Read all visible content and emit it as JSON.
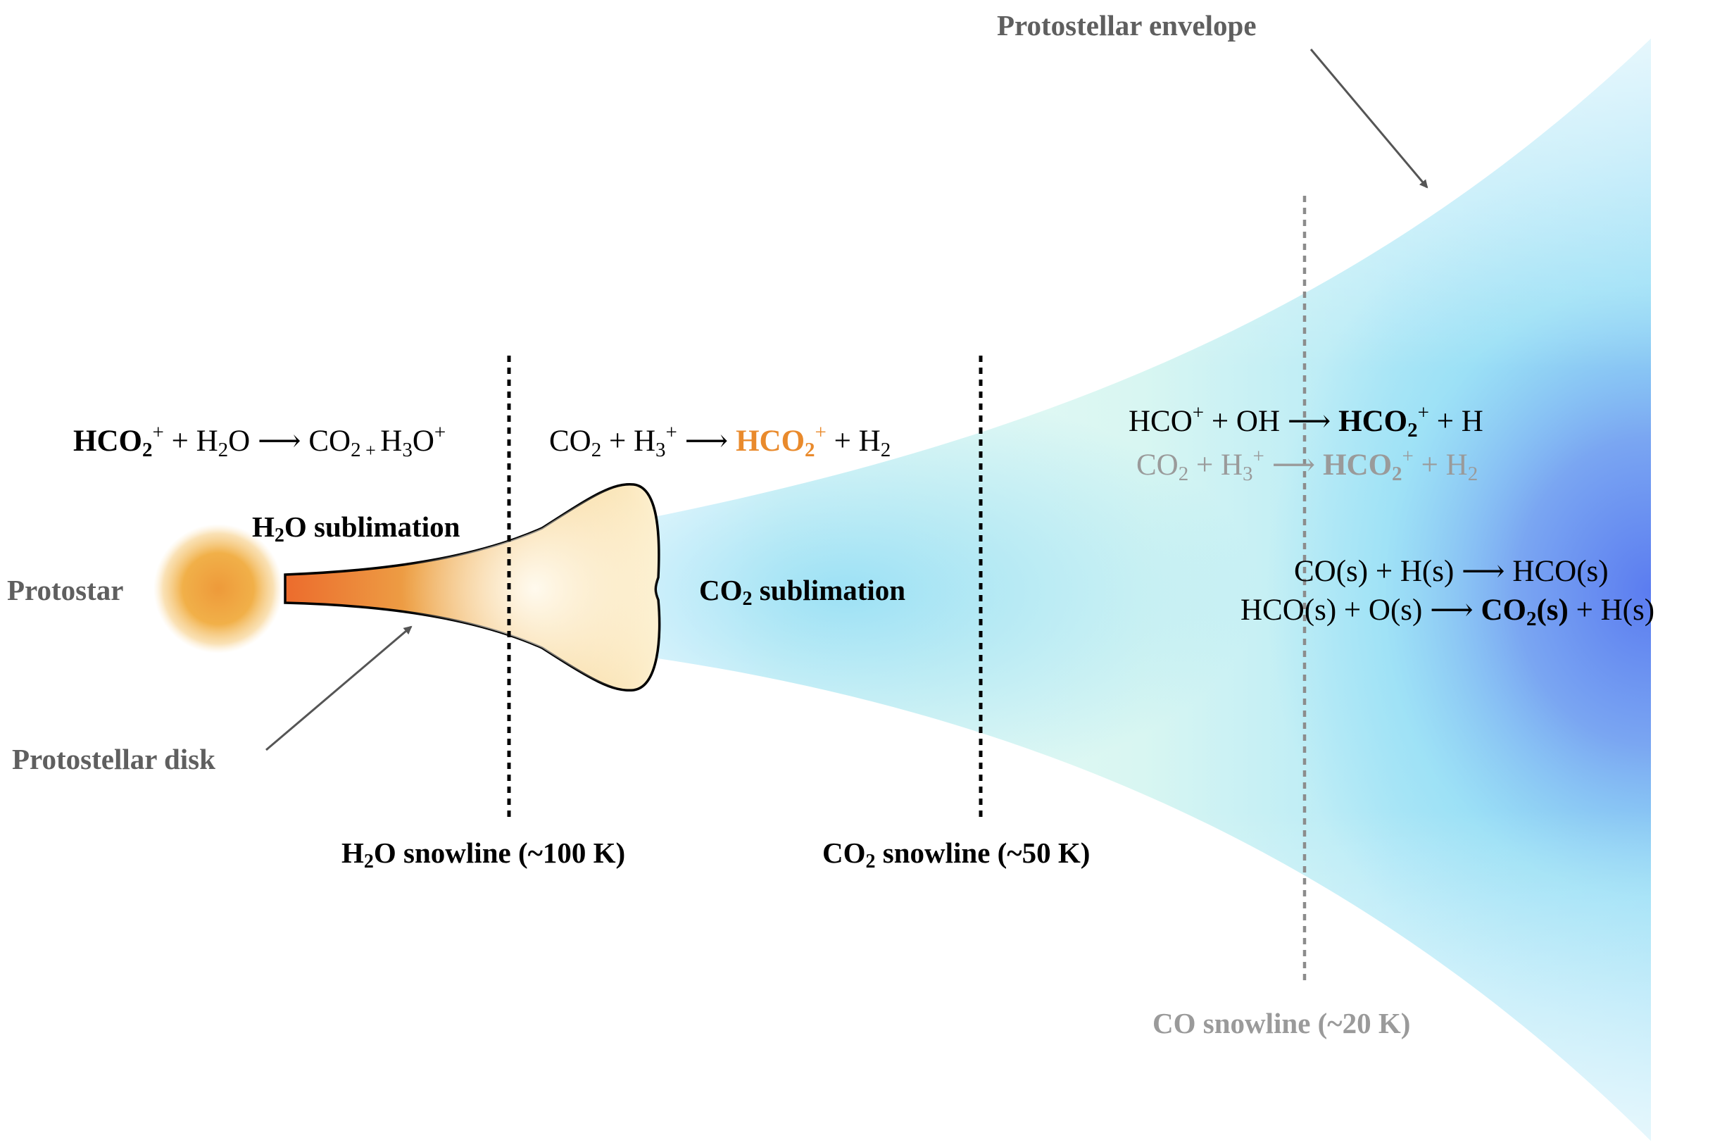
{
  "labels": {
    "protostar": "Protostar",
    "protostellar_disk": "Protostellar disk",
    "protostellar_envelope": "Protostellar envelope",
    "h2o_sublimation": {
      "pre": "H",
      "sub": "2",
      "post": "O sublimation"
    },
    "co2_sublimation": {
      "pre": "CO",
      "sub": "2",
      "post": " sublimation"
    },
    "h2o_snowline": {
      "pre": "H",
      "sub": "2",
      "post": "O snowline (~100 K)"
    },
    "co2_snowline": {
      "pre": "CO",
      "sub": "2",
      "post": " snowline (~50 K)"
    },
    "co_snowline": "CO snowline (~20 K)"
  },
  "reactions": {
    "r1": {
      "a": "HCO",
      "a_sub": "2",
      "a_sup": "+",
      "b": " + H",
      "b_sub": "2",
      "b_post": "O ",
      "arrow": "⟶",
      "c": " CO",
      "c_sub": "2",
      "c_plus": " + ",
      "d": "H",
      "d_sub": "3",
      "d_post": "O",
      "d_sup": "+"
    },
    "r2": {
      "a": "CO",
      "a_sub": "2",
      "b": " + H",
      "b_sub": "3",
      "b_sup": "+",
      "arrow": " ⟶ ",
      "c": "HCO",
      "c_sub": "2",
      "c_sup": "+",
      "d": " + H",
      "d_sub": "2"
    },
    "r3": {
      "a": "HCO",
      "a_sup": "+",
      "b": " + OH ",
      "arrow": "⟶",
      "c": " HCO",
      "c_sub": "2",
      "c_sup": "+",
      "d": " + H"
    },
    "r4": {
      "a": "CO",
      "a_sub": "2",
      "b": " + H",
      "b_sub": "3",
      "b_sup": "+",
      "arrow": " ⟶ ",
      "c": "HCO",
      "c_sub": "2",
      "c_sup": "+",
      "d": " + H",
      "d_sub": "2"
    },
    "r5": {
      "text": "CO(s) + H(s) ⟶ HCO(s)"
    },
    "r6": {
      "a": "HCO(s) + O(s) ⟶ ",
      "b": "CO",
      "b_sub": "2",
      "b_post": "(s)",
      "c": " + H(s)"
    }
  },
  "colors": {
    "orange": "#e98a2c",
    "gray_label": "#5f5f5f",
    "light_gray": "#9a9a9a",
    "envelope_blue": "#5b7cf0",
    "envelope_cyan": "#8fdcf5",
    "envelope_mint": "#e4fbf2"
  }
}
